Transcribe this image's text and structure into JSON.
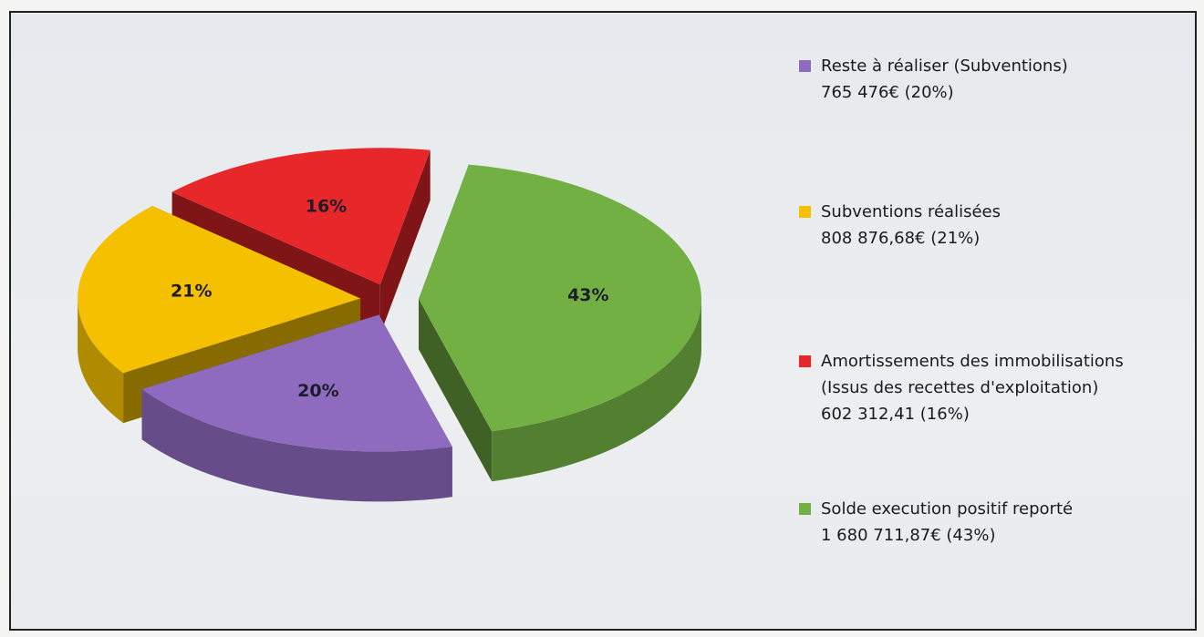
{
  "chart_data": {
    "type": "pie",
    "categories": [
      "Reste à réaliser (Subventions)",
      "Subventions réalisées",
      "Amortissements des immobilisations (Issus des recettes d'exploitation)",
      "Solde execution positif reporté"
    ],
    "values": [
      20,
      21,
      16,
      43
    ],
    "value_labels": [
      "20%",
      "21%",
      "16%",
      "43%"
    ],
    "amounts": [
      "765 476€ (20%)",
      "808 876,68€ (21%)",
      "602 312,41 (16%)",
      "1 680 711,87€ (43%)"
    ],
    "colors": [
      "#8e6bbf",
      "#f5c000",
      "#e8272a",
      "#72b043"
    ],
    "legend": "right"
  }
}
